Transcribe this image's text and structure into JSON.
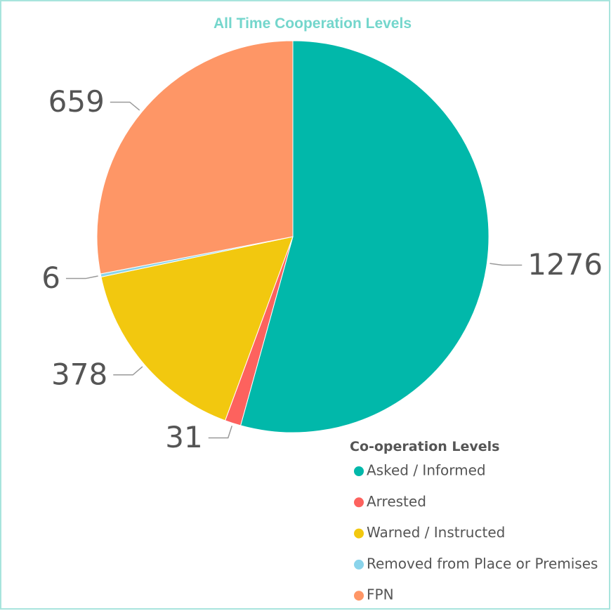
{
  "chart_data": {
    "type": "pie",
    "title": "All Time Cooperation Levels",
    "legend_title": "Co-operation Levels",
    "categories": [
      "Asked / Informed",
      "Arrested",
      "Warned / Instructed",
      "Removed from Place or Premises",
      "FPN"
    ],
    "values": [
      1276,
      31,
      378,
      6,
      659
    ],
    "colors": [
      "#01B8AA",
      "#FD625E",
      "#F2C80F",
      "#8AD4EB",
      "#FE9666"
    ]
  }
}
